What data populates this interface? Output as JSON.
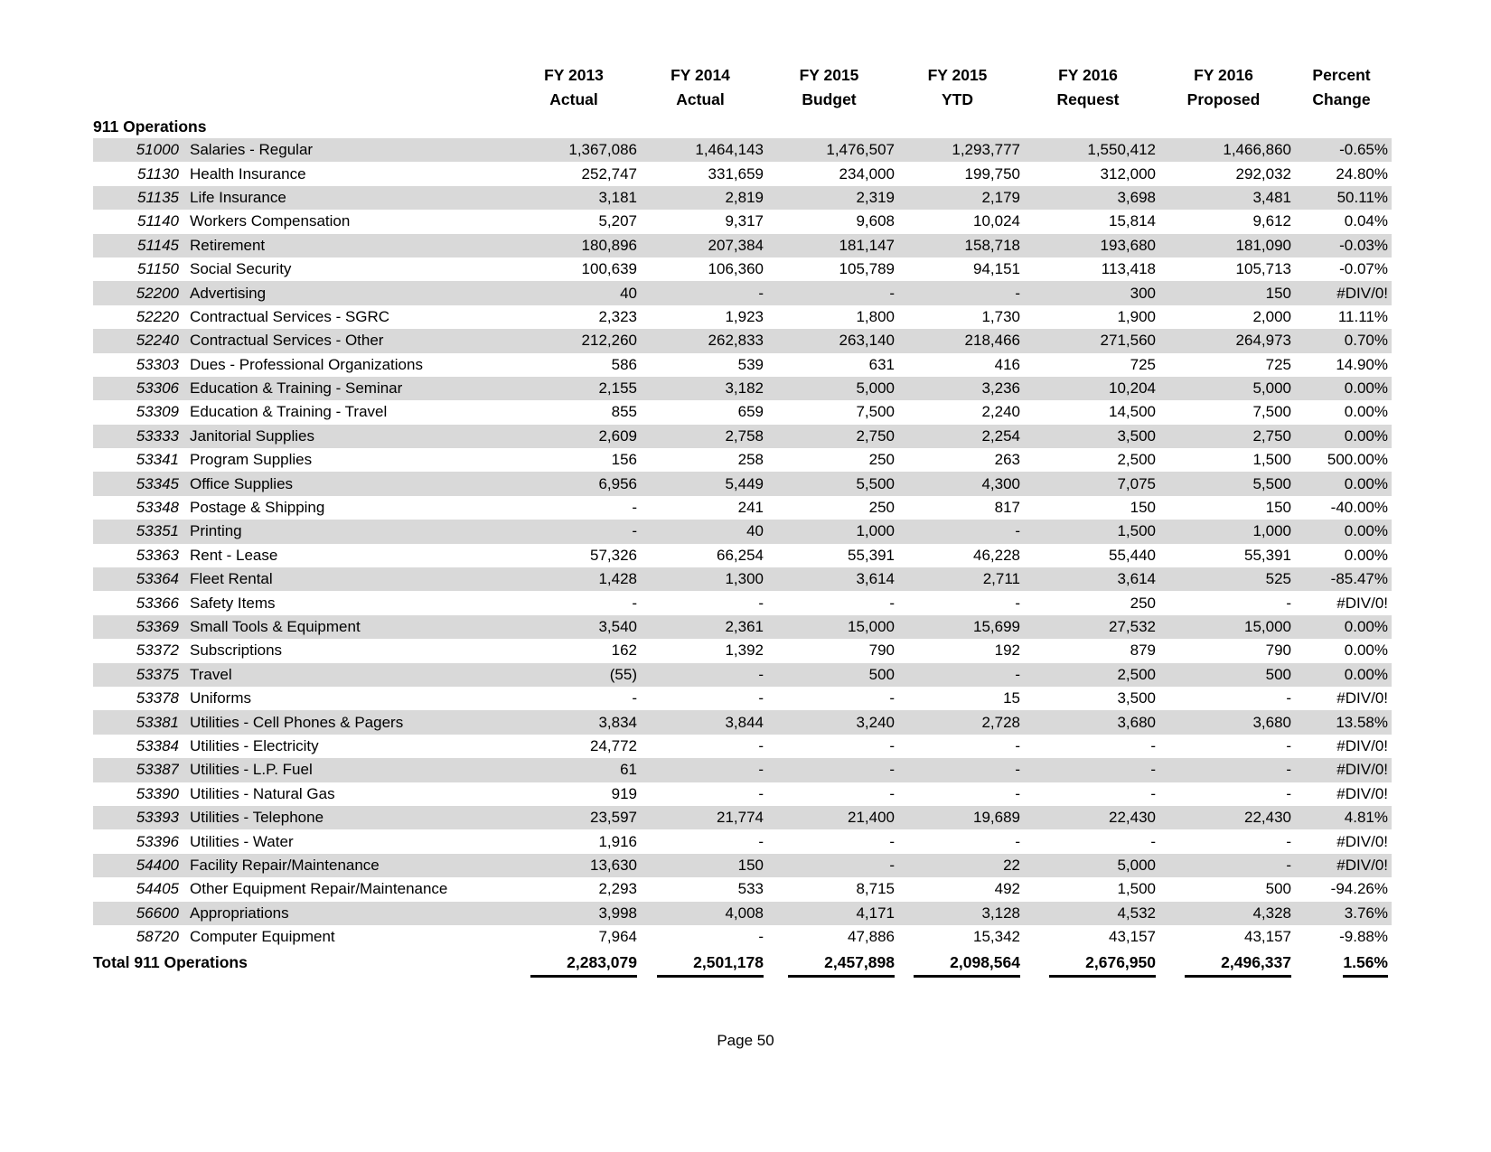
{
  "page": {
    "number_label": "Page 50"
  },
  "colors": {
    "stripe": "#d9d9d9",
    "text": "#000000",
    "background": "#ffffff",
    "total_underline": "#000000"
  },
  "table": {
    "section_title": "911 Operations",
    "total_label": "Total 911 Operations",
    "columns": [
      {
        "line1": "FY 2013",
        "line2": "Actual"
      },
      {
        "line1": "FY 2014",
        "line2": "Actual"
      },
      {
        "line1": "FY 2015",
        "line2": "Budget"
      },
      {
        "line1": "FY 2015",
        "line2": "YTD"
      },
      {
        "line1": "FY 2016",
        "line2": "Request"
      },
      {
        "line1": "FY 2016",
        "line2": "Proposed"
      },
      {
        "line1": "Percent",
        "line2": "Change"
      }
    ],
    "rows": [
      {
        "code": "51000",
        "desc": "Salaries - Regular",
        "values": [
          "1,367,086",
          "1,464,143",
          "1,476,507",
          "1,293,777",
          "1,550,412",
          "1,466,860",
          "-0.65%"
        ]
      },
      {
        "code": "51130",
        "desc": "Health Insurance",
        "values": [
          "252,747",
          "331,659",
          "234,000",
          "199,750",
          "312,000",
          "292,032",
          "24.80%"
        ]
      },
      {
        "code": "51135",
        "desc": "Life Insurance",
        "values": [
          "3,181",
          "2,819",
          "2,319",
          "2,179",
          "3,698",
          "3,481",
          "50.11%"
        ]
      },
      {
        "code": "51140",
        "desc": "Workers Compensation",
        "values": [
          "5,207",
          "9,317",
          "9,608",
          "10,024",
          "15,814",
          "9,612",
          "0.04%"
        ]
      },
      {
        "code": "51145",
        "desc": "Retirement",
        "values": [
          "180,896",
          "207,384",
          "181,147",
          "158,718",
          "193,680",
          "181,090",
          "-0.03%"
        ]
      },
      {
        "code": "51150",
        "desc": "Social Security",
        "values": [
          "100,639",
          "106,360",
          "105,789",
          "94,151",
          "113,418",
          "105,713",
          "-0.07%"
        ]
      },
      {
        "code": "52200",
        "desc": "Advertising",
        "values": [
          "40",
          "-",
          "-",
          "-",
          "300",
          "150",
          "#DIV/0!"
        ]
      },
      {
        "code": "52220",
        "desc": "Contractual Services - SGRC",
        "values": [
          "2,323",
          "1,923",
          "1,800",
          "1,730",
          "1,900",
          "2,000",
          "11.11%"
        ]
      },
      {
        "code": "52240",
        "desc": "Contractual Services - Other",
        "values": [
          "212,260",
          "262,833",
          "263,140",
          "218,466",
          "271,560",
          "264,973",
          "0.70%"
        ]
      },
      {
        "code": "53303",
        "desc": "Dues - Professional Organizations",
        "values": [
          "586",
          "539",
          "631",
          "416",
          "725",
          "725",
          "14.90%"
        ]
      },
      {
        "code": "53306",
        "desc": "Education & Training - Seminar",
        "values": [
          "2,155",
          "3,182",
          "5,000",
          "3,236",
          "10,204",
          "5,000",
          "0.00%"
        ]
      },
      {
        "code": "53309",
        "desc": "Education & Training - Travel",
        "values": [
          "855",
          "659",
          "7,500",
          "2,240",
          "14,500",
          "7,500",
          "0.00%"
        ]
      },
      {
        "code": "53333",
        "desc": "Janitorial Supplies",
        "values": [
          "2,609",
          "2,758",
          "2,750",
          "2,254",
          "3,500",
          "2,750",
          "0.00%"
        ]
      },
      {
        "code": "53341",
        "desc": "Program Supplies",
        "values": [
          "156",
          "258",
          "250",
          "263",
          "2,500",
          "1,500",
          "500.00%"
        ]
      },
      {
        "code": "53345",
        "desc": "Office Supplies",
        "values": [
          "6,956",
          "5,449",
          "5,500",
          "4,300",
          "7,075",
          "5,500",
          "0.00%"
        ]
      },
      {
        "code": "53348",
        "desc": "Postage & Shipping",
        "values": [
          "-",
          "241",
          "250",
          "817",
          "150",
          "150",
          "-40.00%"
        ]
      },
      {
        "code": "53351",
        "desc": "Printing",
        "values": [
          "-",
          "40",
          "1,000",
          "-",
          "1,500",
          "1,000",
          "0.00%"
        ]
      },
      {
        "code": "53363",
        "desc": "Rent - Lease",
        "values": [
          "57,326",
          "66,254",
          "55,391",
          "46,228",
          "55,440",
          "55,391",
          "0.00%"
        ]
      },
      {
        "code": "53364",
        "desc": "Fleet Rental",
        "values": [
          "1,428",
          "1,300",
          "3,614",
          "2,711",
          "3,614",
          "525",
          "-85.47%"
        ]
      },
      {
        "code": "53366",
        "desc": "Safety Items",
        "values": [
          "-",
          "-",
          "-",
          "-",
          "250",
          "-",
          "#DIV/0!"
        ]
      },
      {
        "code": "53369",
        "desc": "Small Tools & Equipment",
        "values": [
          "3,540",
          "2,361",
          "15,000",
          "15,699",
          "27,532",
          "15,000",
          "0.00%"
        ]
      },
      {
        "code": "53372",
        "desc": "Subscriptions",
        "values": [
          "162",
          "1,392",
          "790",
          "192",
          "879",
          "790",
          "0.00%"
        ]
      },
      {
        "code": "53375",
        "desc": "Travel",
        "values": [
          "(55)",
          "-",
          "500",
          "-",
          "2,500",
          "500",
          "0.00%"
        ]
      },
      {
        "code": "53378",
        "desc": "Uniforms",
        "values": [
          "-",
          "-",
          "-",
          "15",
          "3,500",
          "-",
          "#DIV/0!"
        ]
      },
      {
        "code": "53381",
        "desc": "Utilities - Cell Phones & Pagers",
        "values": [
          "3,834",
          "3,844",
          "3,240",
          "2,728",
          "3,680",
          "3,680",
          "13.58%"
        ]
      },
      {
        "code": "53384",
        "desc": "Utilities - Electricity",
        "values": [
          "24,772",
          "-",
          "-",
          "-",
          "-",
          "-",
          "#DIV/0!"
        ]
      },
      {
        "code": "53387",
        "desc": "Utilities - L.P. Fuel",
        "values": [
          "61",
          "-",
          "-",
          "-",
          "-",
          "-",
          "#DIV/0!"
        ]
      },
      {
        "code": "53390",
        "desc": "Utilities - Natural Gas",
        "values": [
          "919",
          "-",
          "-",
          "-",
          "-",
          "-",
          "#DIV/0!"
        ]
      },
      {
        "code": "53393",
        "desc": "Utilities - Telephone",
        "values": [
          "23,597",
          "21,774",
          "21,400",
          "19,689",
          "22,430",
          "22,430",
          "4.81%"
        ]
      },
      {
        "code": "53396",
        "desc": "Utilities - Water",
        "values": [
          "1,916",
          "-",
          "-",
          "-",
          "-",
          "-",
          "#DIV/0!"
        ]
      },
      {
        "code": "54400",
        "desc": "Facility Repair/Maintenance",
        "values": [
          "13,630",
          "150",
          "-",
          "22",
          "5,000",
          "-",
          "#DIV/0!"
        ]
      },
      {
        "code": "54405",
        "desc": "Other Equipment Repair/Maintenance",
        "values": [
          "2,293",
          "533",
          "8,715",
          "492",
          "1,500",
          "500",
          "-94.26%"
        ]
      },
      {
        "code": "56600",
        "desc": "Appropriations",
        "values": [
          "3,998",
          "4,008",
          "4,171",
          "3,128",
          "4,532",
          "4,328",
          "3.76%"
        ]
      },
      {
        "code": "58720",
        "desc": "Computer Equipment",
        "values": [
          "7,964",
          "-",
          "47,886",
          "15,342",
          "43,157",
          "43,157",
          "-9.88%"
        ]
      }
    ],
    "totals": [
      "2,283,079",
      "2,501,178",
      "2,457,898",
      "2,098,564",
      "2,676,950",
      "2,496,337",
      "1.56%"
    ]
  }
}
